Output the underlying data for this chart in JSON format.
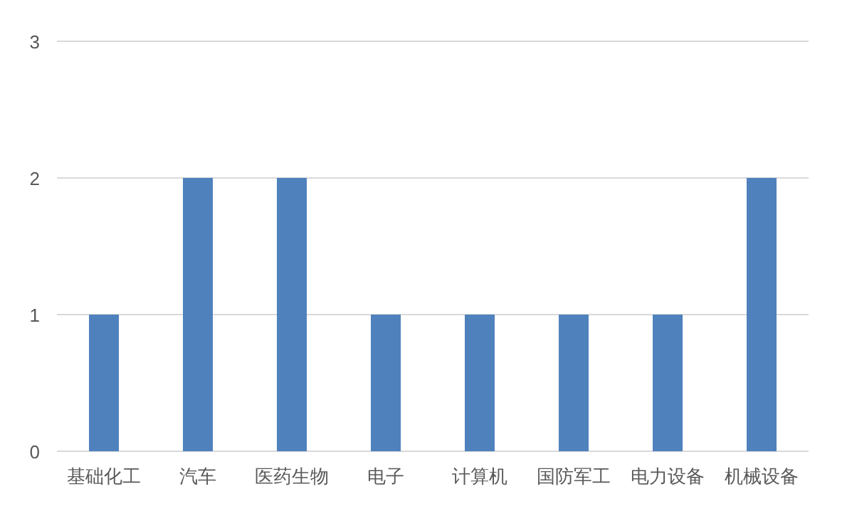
{
  "chart_data": {
    "type": "bar",
    "categories": [
      "基础化工",
      "汽车",
      "医药生物",
      "电子",
      "计算机",
      "国防军工",
      "电力设备",
      "机械设备"
    ],
    "values": [
      1,
      2,
      2,
      1,
      1,
      1,
      1,
      2
    ],
    "color": "#4f81bd",
    "ylim": [
      0,
      3
    ],
    "yticks": [
      0,
      1,
      2,
      3
    ],
    "grid": "y"
  }
}
